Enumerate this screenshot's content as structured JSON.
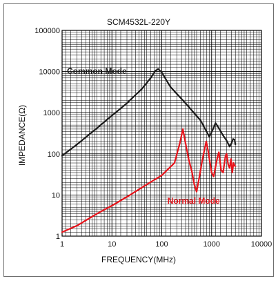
{
  "chart_data": {
    "type": "line",
    "title": "SCM4532L-220Y",
    "xlabel": "FREQUENCY(MHz)",
    "ylabel": "IMPEDANCE(Ω)",
    "x_scale": "log",
    "y_scale": "log",
    "xlim": [
      1,
      10000
    ],
    "ylim": [
      1,
      100000
    ],
    "x_ticks": [
      "1",
      "10",
      "100",
      "1000",
      "10000"
    ],
    "y_ticks": [
      "1",
      "10",
      "100",
      "1000",
      "10000",
      "100000"
    ],
    "grid": true,
    "series": [
      {
        "name": "Common Mode",
        "color": "#1a1a1a",
        "points": [
          [
            1,
            90
          ],
          [
            2,
            170
          ],
          [
            5,
            420
          ],
          [
            10,
            850
          ],
          [
            20,
            1700
          ],
          [
            40,
            3800
          ],
          [
            60,
            7000
          ],
          [
            75,
            10500
          ],
          [
            85,
            11500
          ],
          [
            100,
            9500
          ],
          [
            150,
            4200
          ],
          [
            300,
            1700
          ],
          [
            600,
            650
          ],
          [
            900,
            260
          ],
          [
            1050,
            380
          ],
          [
            1200,
            560
          ],
          [
            1400,
            420
          ],
          [
            1700,
            280
          ],
          [
            2000,
            210
          ],
          [
            2300,
            150
          ],
          [
            2500,
            180
          ],
          [
            2700,
            230
          ],
          [
            2900,
            220
          ],
          [
            3000,
            170
          ]
        ]
      },
      {
        "name": "Normal Mode",
        "color": "#e8141b",
        "points": [
          [
            1,
            1.25
          ],
          [
            2,
            1.8
          ],
          [
            5,
            3.5
          ],
          [
            10,
            5.5
          ],
          [
            20,
            9
          ],
          [
            50,
            18
          ],
          [
            100,
            30
          ],
          [
            180,
            60
          ],
          [
            230,
            180
          ],
          [
            265,
            400
          ],
          [
            300,
            180
          ],
          [
            350,
            70
          ],
          [
            400,
            38
          ],
          [
            450,
            18
          ],
          [
            500,
            12
          ],
          [
            560,
            25
          ],
          [
            650,
            70
          ],
          [
            780,
            200
          ],
          [
            850,
            120
          ],
          [
            1000,
            35
          ],
          [
            1100,
            28
          ],
          [
            1300,
            80
          ],
          [
            1400,
            110
          ],
          [
            1550,
            40
          ],
          [
            1700,
            35
          ],
          [
            1900,
            90
          ],
          [
            2000,
            100
          ],
          [
            2150,
            55
          ],
          [
            2300,
            45
          ],
          [
            2450,
            75
          ],
          [
            2600,
            35
          ],
          [
            2750,
            60
          ],
          [
            2900,
            52
          ],
          [
            3000,
            50
          ]
        ]
      }
    ]
  }
}
